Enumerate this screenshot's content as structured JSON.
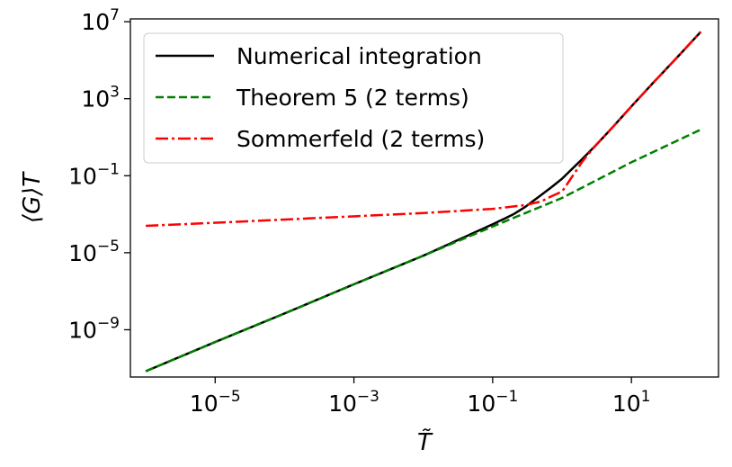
{
  "chart_data": {
    "type": "line",
    "xscale": "log",
    "yscale": "log",
    "xlim": [
      6e-07,
      180
    ],
    "ylim": [
      3.5e-12,
      14000000.0
    ],
    "xticks": [
      {
        "value": 1e-05,
        "base": "10",
        "exp": "−5"
      },
      {
        "value": 0.001,
        "base": "10",
        "exp": "−3"
      },
      {
        "value": 0.1,
        "base": "10",
        "exp": "−1"
      },
      {
        "value": 10,
        "base": "10",
        "exp": "1"
      }
    ],
    "yticks": [
      {
        "value": 1e-09,
        "base": "10",
        "exp": "−9"
      },
      {
        "value": 1e-05,
        "base": "10",
        "exp": "−5"
      },
      {
        "value": 0.1,
        "base": "10",
        "exp": "−1"
      },
      {
        "value": 1000.0,
        "base": "10",
        "exp": "3"
      },
      {
        "value": 10000000.0,
        "base": "10",
        "exp": "7"
      }
    ],
    "xlabel": "T̃",
    "ylabel": "⟨G⟩T",
    "legend_position": "top-left",
    "grid": false,
    "series": [
      {
        "name": "Numerical integration",
        "color": "#000000",
        "style": "solid",
        "x": [
          1e-06,
          1e-05,
          0.0001,
          0.001,
          0.01,
          0.1,
          0.2,
          0.3,
          0.5,
          0.7,
          1,
          2,
          3,
          5,
          10,
          20,
          50,
          100
        ],
        "y": [
          7e-12,
          2.3e-10,
          7e-09,
          2.3e-07,
          7e-06,
          0.0003,
          0.001,
          0.0025,
          0.01,
          0.025,
          0.07,
          0.8,
          3.5,
          25,
          400,
          6000,
          200000.0,
          3000000.0
        ]
      },
      {
        "name": "Theorem 5 (2 terms)",
        "color": "#008000",
        "style": "dashed",
        "x": [
          1e-06,
          1e-05,
          0.0001,
          0.001,
          0.01,
          0.1,
          1,
          10,
          100
        ],
        "y": [
          7e-12,
          2.3e-10,
          7e-09,
          2.3e-07,
          7e-06,
          0.00023,
          0.007,
          0.5,
          25
        ]
      },
      {
        "name": "Sommerfeld (2 terms)",
        "color": "#ff0000",
        "style": "dashdot",
        "x": [
          1e-06,
          1e-05,
          0.0001,
          0.001,
          0.01,
          0.1,
          0.3,
          0.5,
          0.7,
          1,
          2,
          3,
          5,
          10,
          20,
          50,
          100
        ],
        "y": [
          0.00025,
          0.00036,
          0.00053,
          0.00078,
          0.00115,
          0.0019,
          0.003,
          0.0046,
          0.0085,
          0.015,
          0.6,
          3.5,
          25,
          400,
          6000,
          200000.0,
          3000000.0
        ]
      }
    ]
  }
}
